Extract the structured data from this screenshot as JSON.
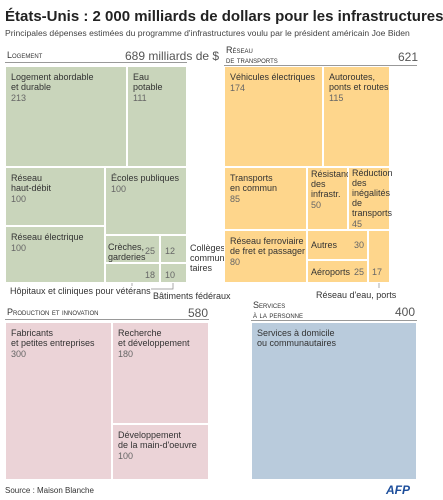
{
  "header": {
    "title": "États-Unis : 2 000 milliards de dollars pour les infrastructures",
    "subtitle": "Principales dépenses estimées du programme d'infrastructures voulu par le président américain Joe Biden"
  },
  "groups": [
    {
      "label": [
        "Logement"
      ],
      "total": 689,
      "total_label": "689 milliards de $",
      "color": "#c9d5bb",
      "items": [
        {
          "label": [
            "Logement abordable",
            "et durable"
          ],
          "value": 213
        },
        {
          "label": [
            "Eau",
            "potable"
          ],
          "value": 111
        },
        {
          "label": [
            "Réseau",
            "haut-débit"
          ],
          "value": 100
        },
        {
          "label": [
            "Écoles publiques"
          ],
          "value": 100
        },
        {
          "label": [
            "Réseau électrique"
          ],
          "value": 100
        },
        {
          "label": [
            "Crèches,",
            "garderies"
          ],
          "value": 25
        },
        {
          "label": [
            "Collèges",
            "communau-",
            "taires"
          ],
          "value": 12
        },
        {
          "label": [
            "Hôpitaux et cliniques pour vétérans"
          ],
          "value": 18
        },
        {
          "label": [
            "Bâtiments fédéraux"
          ],
          "value": 10
        }
      ]
    },
    {
      "label": [
        "Réseau",
        "de transports"
      ],
      "total": 621,
      "color": "#fed68c",
      "items": [
        {
          "label": [
            "Véhicules électriques"
          ],
          "value": 174
        },
        {
          "label": [
            "Autoroutes,",
            "ponts et routes"
          ],
          "value": 115
        },
        {
          "label": [
            "Transports",
            "en commun"
          ],
          "value": 85
        },
        {
          "label": [
            "Résistance",
            "des",
            "infrastr."
          ],
          "value": 50
        },
        {
          "label": [
            "Réduction",
            "des",
            "inégalités",
            "de",
            "transports"
          ],
          "value": 45
        },
        {
          "label": [
            "Réseau ferroviaire",
            "de fret et passager"
          ],
          "value": 80
        },
        {
          "label": [
            "Autres"
          ],
          "value": 30
        },
        {
          "label": [
            "Aéroports"
          ],
          "value": 25
        },
        {
          "label": [
            "Réseau d'eau, ports"
          ],
          "value": 17
        }
      ]
    },
    {
      "label": [
        "Production et innovation"
      ],
      "total": 580,
      "color": "#ebd3d7",
      "items": [
        {
          "label": [
            "Fabricants",
            "et petites entreprises"
          ],
          "value": 300
        },
        {
          "label": [
            "Recherche",
            "et développement"
          ],
          "value": 180
        },
        {
          "label": [
            "Développement",
            "de la main-d'oeuvre"
          ],
          "value": 100
        }
      ]
    },
    {
      "label": [
        "Services",
        "à la personne"
      ],
      "total": 400,
      "color": "#b9cbdc",
      "items": [
        {
          "label": [
            "Services à domicile",
            "ou communautaires"
          ]
        }
      ]
    }
  ],
  "footer": {
    "source": "Source : Maison Blanche",
    "logo": "AFP"
  }
}
